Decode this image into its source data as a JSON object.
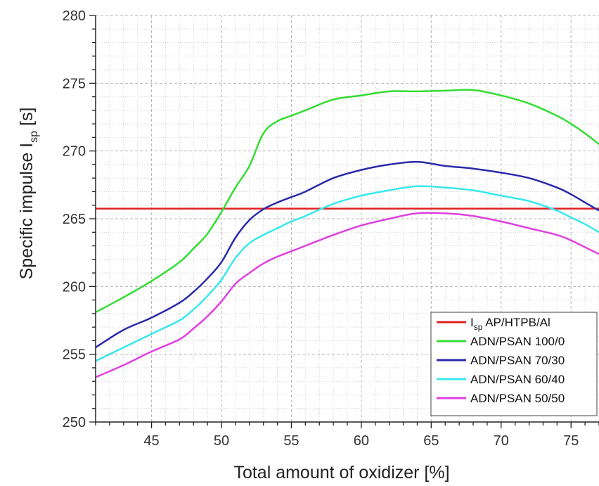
{
  "chart_data": {
    "type": "line",
    "title": "",
    "xlabel": "Total amount of oxidizer [%]",
    "ylabel": "Specific impulse I",
    "ylabel_subscript": "sp",
    "ylabel_unit": " [s]",
    "xlim": [
      41,
      77
    ],
    "ylim": [
      250,
      280
    ],
    "x_ticks": [
      45,
      50,
      55,
      60,
      65,
      70,
      75
    ],
    "y_ticks": [
      250,
      255,
      260,
      265,
      270,
      275,
      280
    ],
    "grid": true,
    "legend_position": "bottom-right",
    "series": [
      {
        "name": "AP/HTPB/Al",
        "name_prefix": "I",
        "name_subscript": "sp",
        "color": "#e02020",
        "x": [
          41,
          77
        ],
        "y": [
          265.75,
          265.75
        ]
      },
      {
        "name": "ADN/PSAN 100/0",
        "color": "#33dd33",
        "x": [
          41,
          43,
          45,
          47,
          48,
          49,
          50,
          51,
          52,
          53,
          54,
          55,
          56,
          58,
          60,
          62,
          64,
          66,
          68,
          70,
          72,
          74,
          75,
          76,
          77
        ],
        "y": [
          258.1,
          259.2,
          260.4,
          261.8,
          262.8,
          263.9,
          265.5,
          267.3,
          268.9,
          271.3,
          272.2,
          272.6,
          273.0,
          273.8,
          274.1,
          274.4,
          274.4,
          274.45,
          274.5,
          274.1,
          273.5,
          272.6,
          272.0,
          271.3,
          270.5
        ]
      },
      {
        "name": "ADN/PSAN 70/30",
        "color": "#2a2aaa",
        "x": [
          41,
          43,
          45,
          47,
          48,
          49,
          50,
          51,
          52,
          53,
          54,
          55,
          56,
          58,
          60,
          62,
          64,
          66,
          68,
          70,
          72,
          74,
          75,
          76,
          77
        ],
        "y": [
          255.5,
          256.8,
          257.7,
          258.8,
          259.6,
          260.6,
          261.8,
          263.6,
          264.9,
          265.7,
          266.2,
          266.6,
          267.0,
          268.0,
          268.6,
          269.0,
          269.2,
          268.9,
          268.7,
          268.4,
          268.0,
          267.3,
          266.8,
          266.2,
          265.6
        ]
      },
      {
        "name": "ADN/PSAN 60/40",
        "color": "#38e8ec",
        "x": [
          41,
          43,
          45,
          47,
          48,
          49,
          50,
          51,
          52,
          53,
          54,
          55,
          56,
          58,
          60,
          62,
          64,
          66,
          68,
          70,
          72,
          74,
          75,
          76,
          77
        ],
        "y": [
          254.5,
          255.5,
          256.5,
          257.5,
          258.3,
          259.3,
          260.5,
          262.1,
          263.2,
          263.8,
          264.3,
          264.8,
          265.2,
          266.1,
          266.7,
          267.1,
          267.4,
          267.3,
          267.1,
          266.7,
          266.3,
          265.6,
          265.1,
          264.6,
          264.0
        ]
      },
      {
        "name": "ADN/PSAN 50/50",
        "color": "#e040e0",
        "x": [
          41,
          43,
          45,
          47,
          48,
          49,
          50,
          51,
          52,
          53,
          54,
          55,
          56,
          58,
          60,
          62,
          64,
          66,
          68,
          70,
          72,
          74,
          75,
          76,
          77
        ],
        "y": [
          253.3,
          254.2,
          255.2,
          256.1,
          256.9,
          257.8,
          258.9,
          260.2,
          261.0,
          261.7,
          262.2,
          262.6,
          263.0,
          263.8,
          264.5,
          265.0,
          265.4,
          265.4,
          265.2,
          264.8,
          264.3,
          263.8,
          263.4,
          262.9,
          262.4
        ]
      }
    ]
  }
}
